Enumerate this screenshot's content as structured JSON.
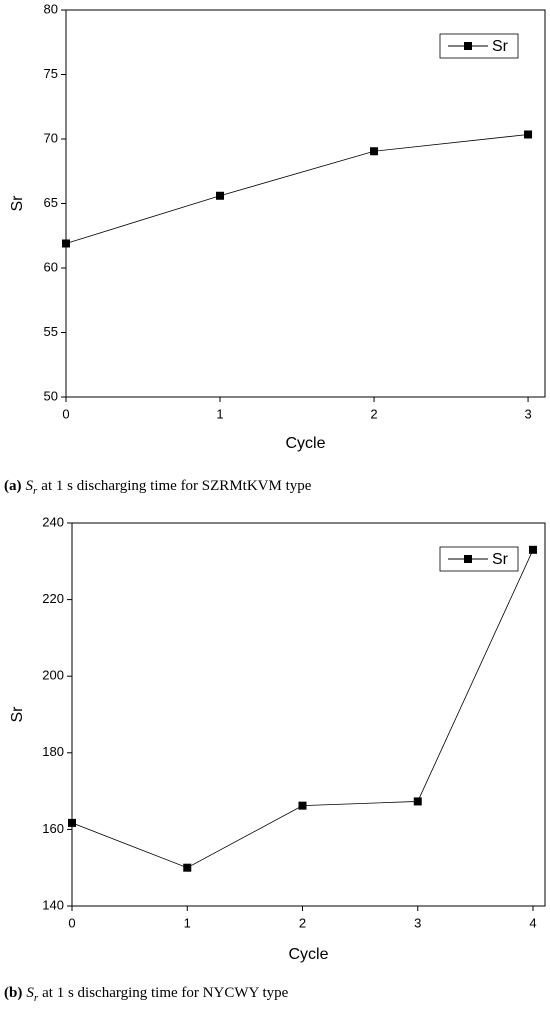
{
  "chart_data": [
    {
      "type": "line",
      "x_label": "Cycle",
      "y_label": "Sr",
      "x": [
        0,
        1,
        2,
        3
      ],
      "xlim": [
        0,
        3.11
      ],
      "xticks": [
        0,
        1,
        2,
        3
      ],
      "ylim": [
        50,
        80
      ],
      "yticks": [
        50,
        55,
        60,
        65,
        70,
        75,
        80
      ],
      "series": [
        {
          "name": "Sr",
          "color": "#000000",
          "values": [
            61.9,
            65.6,
            69.05,
            70.35
          ]
        }
      ],
      "legend": "upper right",
      "caption_label": "(a)",
      "caption_symbol": "S",
      "caption_subscript": "r",
      "caption_text": "at 1 s discharging time for SZRMtKVM type"
    },
    {
      "type": "line",
      "x_label": "Cycle",
      "y_label": "Sr",
      "x": [
        0,
        1,
        2,
        3,
        4
      ],
      "xlim": [
        0,
        4.104
      ],
      "xticks": [
        0,
        1,
        2,
        3,
        4
      ],
      "ylim": [
        140,
        240
      ],
      "yticks": [
        140,
        160,
        180,
        200,
        220,
        240
      ],
      "series": [
        {
          "name": "Sr",
          "color": "#000000",
          "values": [
            161.7,
            150.0,
            166.2,
            167.3,
            233.0
          ]
        }
      ],
      "legend": "upper right",
      "caption_label": "(b)",
      "caption_symbol": "S",
      "caption_subscript": "r",
      "caption_text": "at 1 s discharging time for NYCWY type"
    }
  ]
}
